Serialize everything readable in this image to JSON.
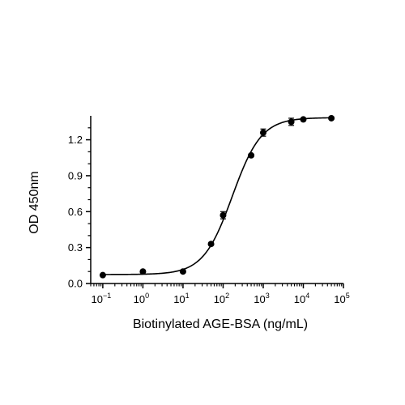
{
  "chart_data": {
    "type": "scatter",
    "title": "",
    "xlabel": "Biotinylated AGE-BSA (ng/mL)",
    "ylabel": "OD 450nm",
    "x_scale": "log",
    "xlim": [
      0.05,
      100000
    ],
    "ylim": [
      0,
      1.4
    ],
    "x_ticks": [
      {
        "value": 0.1,
        "base": "10",
        "exp": "−1"
      },
      {
        "value": 1,
        "base": "10",
        "exp": "0"
      },
      {
        "value": 10,
        "base": "10",
        "exp": "1"
      },
      {
        "value": 100,
        "base": "10",
        "exp": "2"
      },
      {
        "value": 1000,
        "base": "10",
        "exp": "3"
      },
      {
        "value": 10000,
        "base": "10",
        "exp": "4"
      },
      {
        "value": 100000,
        "base": "10",
        "exp": "5"
      }
    ],
    "y_ticks": [
      {
        "value": 0,
        "label": "0.0"
      },
      {
        "value": 0.3,
        "label": "0.3"
      },
      {
        "value": 0.6,
        "label": "0.6"
      },
      {
        "value": 0.9,
        "label": "0.9"
      },
      {
        "value": 1.2,
        "label": "1.2"
      }
    ],
    "grid": false,
    "legend": "none",
    "series": [
      {
        "x": [
          0.1,
          1,
          10,
          50,
          100,
          500,
          1000,
          5000,
          10000,
          50000
        ],
        "y": [
          0.07,
          0.1,
          0.1,
          0.33,
          0.57,
          1.07,
          1.26,
          1.35,
          1.37,
          1.38
        ],
        "error": [
          0.005,
          0.005,
          0.005,
          0.01,
          0.03,
          0.01,
          0.03,
          0.03,
          0.01,
          0.005
        ],
        "fit": "4PL sigmoid",
        "fit_params": {
          "bottom": 0.075,
          "top": 1.385,
          "ec50": 170,
          "hill": 1.2
        },
        "color": "#000000"
      }
    ]
  }
}
